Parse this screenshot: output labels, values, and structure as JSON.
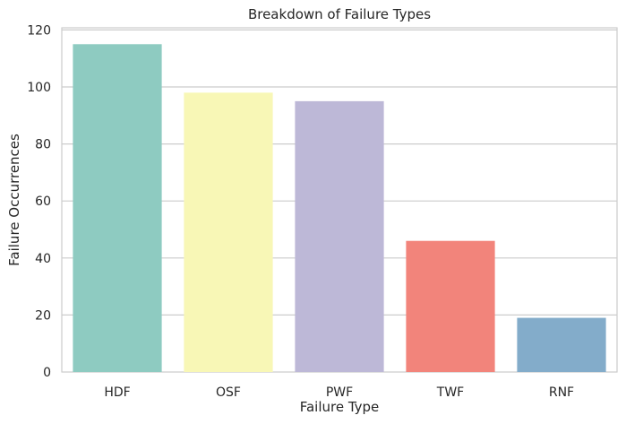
{
  "chart_data": {
    "type": "bar",
    "title": "Breakdown of Failure Types",
    "xlabel": "Failure Type",
    "ylabel": "Failure Occurrences",
    "categories": [
      "HDF",
      "OSF",
      "PWF",
      "TWF",
      "RNF"
    ],
    "values": [
      115,
      98,
      95,
      46,
      19
    ],
    "colors": [
      "#8ecbc1",
      "#f8f7b6",
      "#bdb8d7",
      "#f2847b",
      "#83acca"
    ],
    "ylim": [
      0,
      120.75
    ],
    "yticks": [
      0,
      20,
      40,
      60,
      80,
      100,
      120
    ],
    "grid": "horizontal",
    "legend": "none"
  }
}
